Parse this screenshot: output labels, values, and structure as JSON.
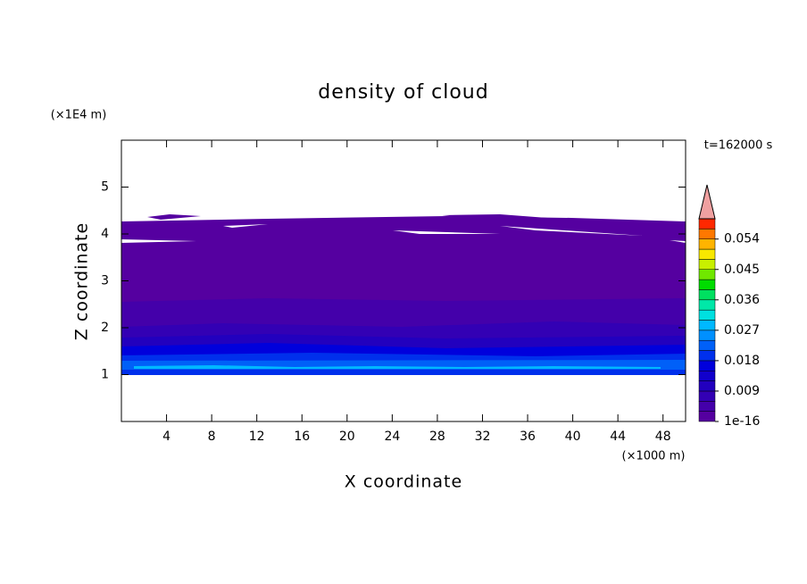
{
  "chart_data": {
    "type": "contour",
    "title": "density of cloud",
    "x_label": "X coordinate",
    "y_label": "Z coordinate",
    "x_unit": "(×1000 m)",
    "y_unit": "(×1E4 m)",
    "time_label": "t=162000 s",
    "xlim": [
      0,
      50
    ],
    "ylim": [
      0,
      6
    ],
    "xticks": [
      4,
      8,
      12,
      16,
      20,
      24,
      28,
      32,
      36,
      40,
      44,
      48
    ],
    "yticks": [
      1,
      2,
      3,
      4,
      5
    ],
    "colorbar": {
      "lim": [
        1e-16,
        0.06
      ],
      "ticks": [
        1e-16,
        0.009,
        0.018,
        0.027,
        0.036,
        0.045,
        0.054
      ],
      "colors": [
        "#5500a0",
        "#4400aa",
        "#3300b4",
        "#2200be",
        "#1100cc",
        "#0000dc",
        "#0030ec",
        "#0060f8",
        "#0090ff",
        "#00b8ff",
        "#00e0e0",
        "#00e8a8",
        "#00e060",
        "#00dc00",
        "#70e800",
        "#c8f000",
        "#f8e800",
        "#ffb400",
        "#ff7800",
        "#ff2800"
      ],
      "extend_color": "#f0a0a0"
    }
  }
}
